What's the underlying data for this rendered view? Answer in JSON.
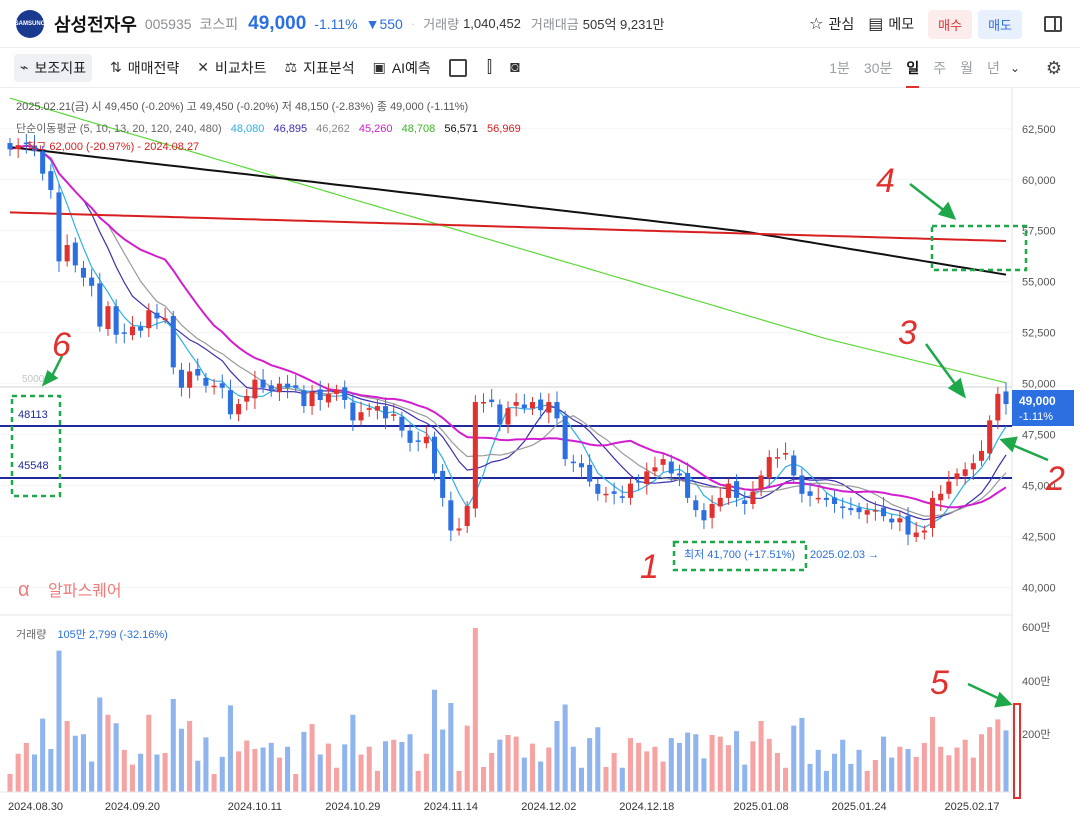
{
  "header": {
    "logo_text": "SAMSUNG",
    "name": "삼성전자우",
    "code": "005935",
    "market": "코스피",
    "price": "49,000",
    "change_pct": "-1.11%",
    "change": "▼550",
    "volume_label": "거래량",
    "volume": "1,040,452",
    "amount_label": "거래대금",
    "amount": "505억 9,231만",
    "watch_label": "관심",
    "memo_label": "메모",
    "buy_label": "매수",
    "sell_label": "매도"
  },
  "toolbar": {
    "indicators": "보조지표",
    "strategy": "매매전략",
    "compare": "비교차트",
    "analysis": "지표분석",
    "ai": "AI예측",
    "periods": [
      "1분",
      "30분",
      "일",
      "주",
      "월",
      "년"
    ],
    "selected_period": "일"
  },
  "colors": {
    "up": "#e0312f",
    "down": "#2b6fe0",
    "ma5": "#2fb0e8",
    "ma10": "#3b2fb0",
    "ma13": "#9a9a9a",
    "ma20": "#d11fcf",
    "ma120": "#5bd83a",
    "ma240": "#111111",
    "ma480": "#d81f1f",
    "level": "#1f2a9c",
    "annot": "#1fa84a",
    "mark": "#e0312f"
  },
  "legend": {
    "ohlc": "2025.02.21(금) 시 49,450 (-0.20%) 고 49,450 (-0.20%) 저 48,150 (-2.83%) 종 49,000 (-1.11%)",
    "ma_title": "단순이동평균 (5, 10, 13, 20, 120, 240, 480)",
    "ma_values": [
      "48,080",
      "46,895",
      "46,262",
      "45,260",
      "48,708",
      "56,571",
      "56,969"
    ],
    "high_note": "← 최고 62,000 (-20.97%) - 2024.08.27",
    "low_note": "최저 41,700 (+17.51%) ← 2025.02.03 →",
    "low_note_main": "최저 41,700 (+17.51%)",
    "low_note_date": "2025.02.03 →",
    "watermark": "알파스퀘어",
    "wm_icon": "α",
    "level_50k": "50000",
    "level_a": "48113",
    "level_b": "45548",
    "price_tag": "49,000",
    "price_tag_pct": "-1.11%",
    "volume_legend": "거래량 105만 2,799 (-32.16%)",
    "vol_label": "거래량",
    "vol_value": "105만 2,799 (-32.16%)"
  },
  "annotations": [
    "1",
    "2",
    "3",
    "4",
    "5",
    "6"
  ],
  "chart_data": {
    "type": "candlestick",
    "ylim": [
      39000,
      64500
    ],
    "yticks": [
      "62,500",
      "60,000",
      "57,500",
      "55,000",
      "52,500",
      "50,000",
      "47,500",
      "45,000",
      "42,500",
      "40,000"
    ],
    "ytick_values": [
      62500,
      60000,
      57500,
      55000,
      52500,
      50000,
      47500,
      45000,
      42500,
      40000
    ],
    "xticks": [
      "2024.08.30",
      "2024.09.20",
      "2024.10.11",
      "2024.10.29",
      "2024.11.14",
      "2024.12.02",
      "2024.12.18",
      "2025.01.08",
      "2025.01.24",
      "2025.02.17"
    ],
    "xtick_index": [
      0,
      15,
      30,
      42,
      54,
      66,
      78,
      92,
      104,
      119
    ],
    "closes": [
      61500,
      61700,
      61800,
      61400,
      60300,
      59500,
      56000,
      56800,
      55800,
      55200,
      54800,
      52800,
      53800,
      52400,
      52500,
      52800,
      52600,
      53600,
      53200,
      53200,
      50800,
      49800,
      50600,
      50400,
      49900,
      49900,
      49800,
      48500,
      49000,
      49400,
      50200,
      49800,
      49700,
      50000,
      49800,
      49800,
      48900,
      49600,
      49200,
      49500,
      49700,
      49200,
      48200,
      48600,
      48800,
      48900,
      48300,
      48500,
      47700,
      47100,
      47200,
      47400,
      45600,
      44400,
      42800,
      42900,
      44000,
      49100,
      49100,
      49100,
      48000,
      48800,
      49100,
      48800,
      49100,
      48700,
      49100,
      48300,
      46300,
      46100,
      45900,
      45200,
      44600,
      44600,
      44600,
      44400,
      45100,
      45200,
      45700,
      45900,
      46300,
      45600,
      45500,
      44400,
      43800,
      43300,
      44100,
      44400,
      45100,
      44400,
      44100,
      44700,
      45500,
      46400,
      46400,
      46600,
      45500,
      44600,
      44500,
      44400,
      44300,
      44100,
      43900,
      43800,
      43700,
      43800,
      43800,
      43500,
      43200,
      43400,
      42600,
      42700,
      42800,
      44400,
      44600,
      45200,
      45600,
      45800,
      46100,
      46700,
      48200,
      49500,
      49000
    ]
  }
}
